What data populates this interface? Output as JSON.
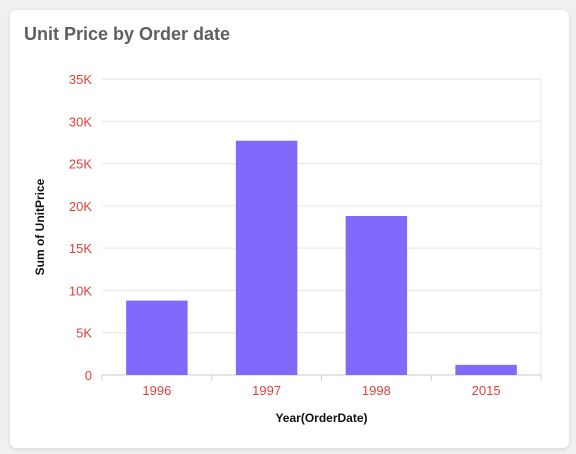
{
  "card": {
    "title": "Unit Price by Order date"
  },
  "colors": {
    "bar": "#8069fb",
    "tick_label": "#e0413b",
    "gridline": "#e6e6e6",
    "axis_line": "#cccccc"
  },
  "chart_data": {
    "type": "bar",
    "title": "Unit Price by Order date",
    "xlabel": "Year(OrderDate)",
    "ylabel": "Sum of UnitPrice",
    "categories": [
      "1996",
      "1997",
      "1998",
      "2015"
    ],
    "values": [
      8800,
      27700,
      18800,
      1200
    ],
    "ylim": [
      0,
      35000
    ],
    "yticks": [
      0,
      5000,
      10000,
      15000,
      20000,
      25000,
      30000,
      35000
    ],
    "ytick_labels": [
      "0",
      "5K",
      "10K",
      "15K",
      "20K",
      "25K",
      "30K",
      "35K"
    ],
    "grid": true,
    "legend": "none"
  }
}
